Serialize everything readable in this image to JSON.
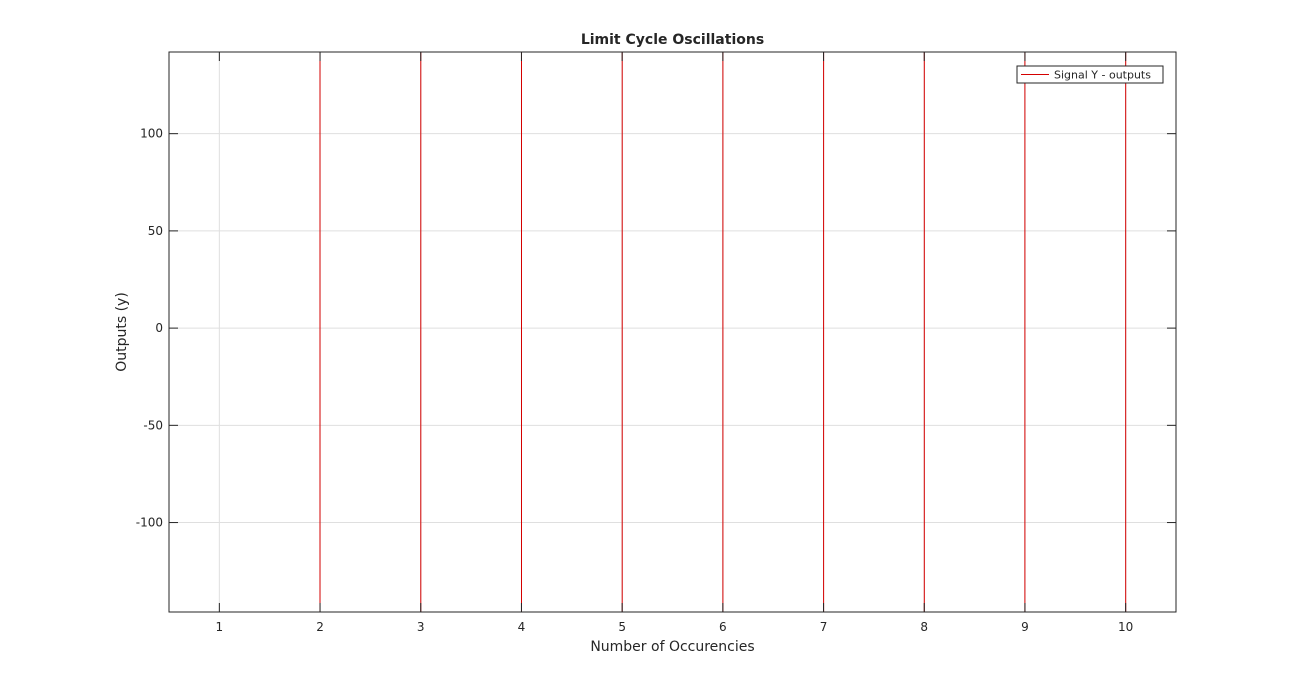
{
  "chart_data": {
    "type": "line",
    "title": "Limit Cycle Oscillations",
    "xlabel": "Number of Occurencies",
    "ylabel": "Outputs (y)",
    "xlim": [
      0.5,
      10.5
    ],
    "ylim": [
      -146,
      142
    ],
    "xticks": [
      1,
      2,
      3,
      4,
      5,
      6,
      7,
      8,
      9,
      10
    ],
    "yticks": [
      -100,
      -50,
      0,
      50,
      100
    ],
    "grid": true,
    "legend_position": "top-right",
    "series": [
      {
        "name": "Signal Y - outputs",
        "color": "#d40000",
        "step": "post",
        "x": [
          1,
          2,
          3,
          4,
          5,
          6,
          7,
          8,
          9,
          10
        ],
        "y": [
          -146,
          142,
          -146,
          142,
          -146,
          142,
          -146,
          142,
          -146,
          142
        ]
      }
    ]
  }
}
